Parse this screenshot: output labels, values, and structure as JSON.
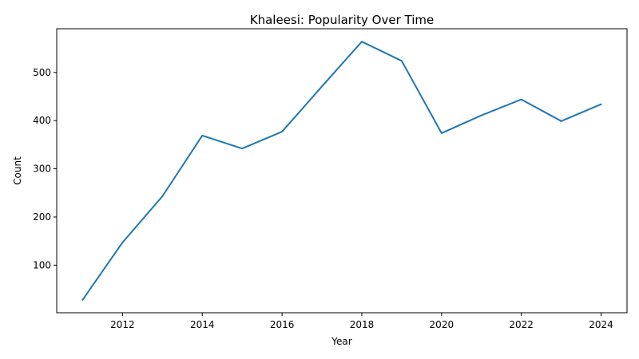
{
  "chart_data": {
    "type": "line",
    "title": "Khaleesi: Popularity Over Time",
    "xlabel": "Year",
    "ylabel": "Count",
    "x": [
      2011,
      2012,
      2013,
      2014,
      2015,
      2016,
      2017,
      2018,
      2019,
      2020,
      2021,
      2022,
      2023,
      2024
    ],
    "series": [
      {
        "values": [
          28,
          147,
          243,
          369,
          342,
          377,
          471,
          564,
          524,
          374,
          411,
          444,
          399,
          434
        ]
      }
    ],
    "xlim": [
      2010.35,
      2024.65
    ],
    "ylim": [
      1.2,
      590.8
    ],
    "xticks": [
      2012,
      2014,
      2016,
      2018,
      2020,
      2022,
      2024
    ],
    "yticks": [
      100,
      200,
      300,
      400,
      500
    ],
    "grid": false,
    "legend": "none",
    "colors": {
      "series": "#1f77b4"
    }
  }
}
